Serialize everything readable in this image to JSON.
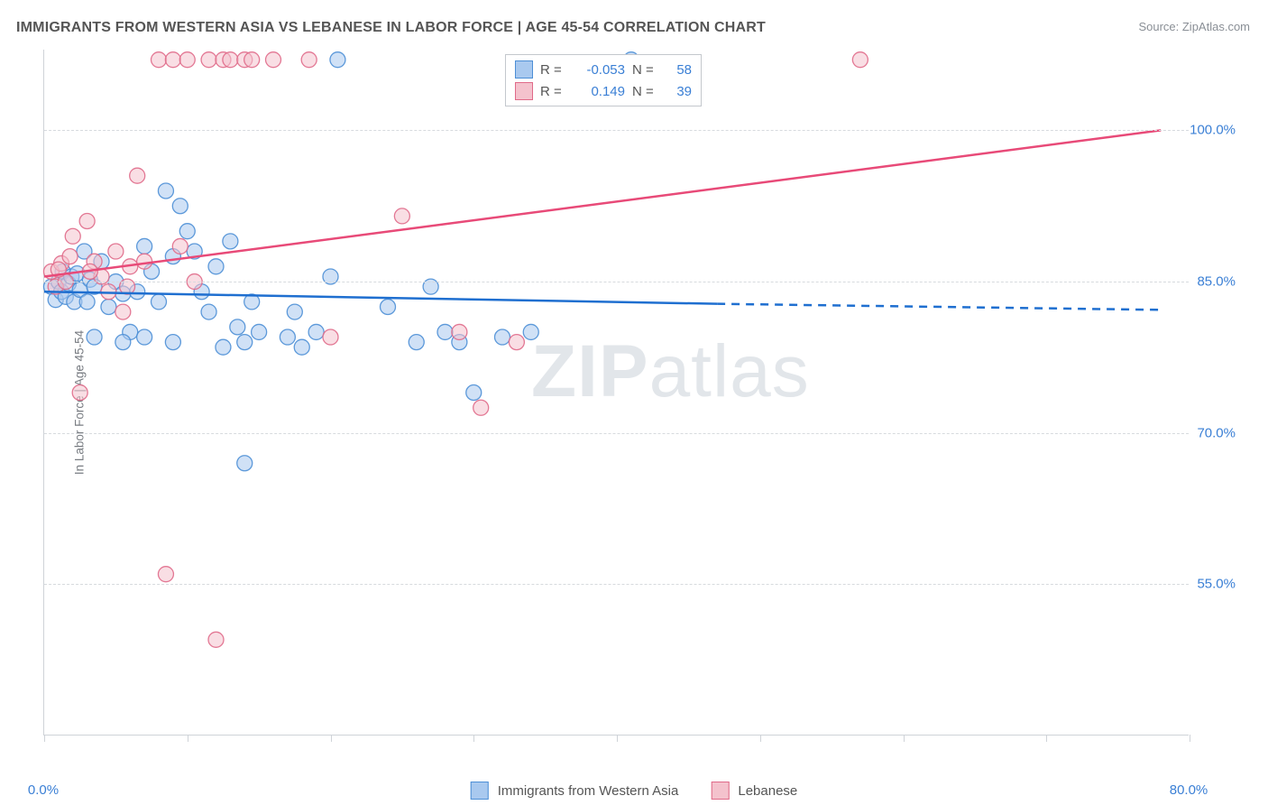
{
  "title": "IMMIGRANTS FROM WESTERN ASIA VS LEBANESE IN LABOR FORCE | AGE 45-54 CORRELATION CHART",
  "source": "Source: ZipAtlas.com",
  "watermark_a": "ZIP",
  "watermark_b": "atlas",
  "y_axis_title": "In Labor Force | Age 45-54",
  "chart": {
    "type": "scatter-with-trend",
    "background_color": "#ffffff",
    "grid_color": "#d7dade",
    "axis_color": "#cfd3d8",
    "x_domain": [
      0,
      80
    ],
    "y_domain": [
      40,
      108
    ],
    "y_ticks": [
      55.0,
      70.0,
      85.0,
      100.0
    ],
    "y_tick_labels": [
      "55.0%",
      "70.0%",
      "85.0%",
      "100.0%"
    ],
    "x_ticks": [
      0,
      10,
      20,
      30,
      40,
      50,
      60,
      70,
      80
    ],
    "x_tick_labels": [
      "0.0%",
      "",
      "",
      "",
      "",
      "",
      "",
      "",
      "80.0%"
    ],
    "marker_radius": 8.5,
    "marker_opacity": 0.55,
    "line_width": 2.5,
    "series": [
      {
        "name": "Immigrants from Western Asia",
        "fill": "#a9c9ef",
        "stroke": "#4d8fd6",
        "line_color": "#1f6fd0",
        "R": "-0.053",
        "N": "58",
        "trend": {
          "x1": 0,
          "y1": 84.0,
          "x2": 47,
          "y2": 82.8,
          "dash_x2": 78,
          "dash_y2": 82.2
        },
        "points": [
          [
            0.5,
            84.5
          ],
          [
            0.8,
            83.2
          ],
          [
            1.0,
            85.0
          ],
          [
            1.2,
            84.0
          ],
          [
            1.3,
            86.0
          ],
          [
            1.5,
            83.5
          ],
          [
            1.7,
            84.8
          ],
          [
            1.9,
            85.5
          ],
          [
            2.1,
            83.0
          ],
          [
            2.3,
            85.8
          ],
          [
            2.5,
            84.2
          ],
          [
            2.8,
            88.0
          ],
          [
            3.0,
            83.0
          ],
          [
            3.2,
            85.2
          ],
          [
            3.5,
            84.5
          ],
          [
            4.0,
            87.0
          ],
          [
            4.5,
            82.5
          ],
          [
            5.0,
            85.0
          ],
          [
            5.5,
            83.8
          ],
          [
            6.0,
            80.0
          ],
          [
            6.5,
            84.0
          ],
          [
            7.0,
            88.5
          ],
          [
            7.5,
            86.0
          ],
          [
            8.0,
            83.0
          ],
          [
            8.5,
            94.0
          ],
          [
            9.0,
            87.5
          ],
          [
            9.5,
            92.5
          ],
          [
            10.0,
            90.0
          ],
          [
            10.5,
            88.0
          ],
          [
            11.0,
            84.0
          ],
          [
            11.5,
            82.0
          ],
          [
            12.0,
            86.5
          ],
          [
            12.5,
            78.5
          ],
          [
            13.0,
            89.0
          ],
          [
            13.5,
            80.5
          ],
          [
            14.0,
            79.0
          ],
          [
            14.5,
            83.0
          ],
          [
            15.0,
            80.0
          ],
          [
            14.0,
            67.0
          ],
          [
            17.0,
            79.5
          ],
          [
            17.5,
            82.0
          ],
          [
            18.0,
            78.5
          ],
          [
            19.0,
            80.0
          ],
          [
            20.0,
            85.5
          ],
          [
            20.5,
            107.0
          ],
          [
            24.0,
            82.5
          ],
          [
            26.0,
            79.0
          ],
          [
            27.0,
            84.5
          ],
          [
            28.0,
            80.0
          ],
          [
            29.0,
            79.0
          ],
          [
            30.0,
            74.0
          ],
          [
            32.0,
            79.5
          ],
          [
            34.0,
            80.0
          ],
          [
            41.0,
            107.0
          ],
          [
            3.5,
            79.5
          ],
          [
            5.5,
            79.0
          ],
          [
            7.0,
            79.5
          ],
          [
            9.0,
            79.0
          ]
        ]
      },
      {
        "name": "Lebanese",
        "fill": "#f4c2cd",
        "stroke": "#e06a89",
        "line_color": "#e84a78",
        "R": "0.149",
        "N": "39",
        "trend": {
          "x1": 0,
          "y1": 85.5,
          "x2": 78,
          "y2": 100.0
        },
        "points": [
          [
            0.5,
            86.0
          ],
          [
            0.8,
            84.5
          ],
          [
            1.2,
            86.8
          ],
          [
            1.5,
            85.0
          ],
          [
            2.0,
            89.5
          ],
          [
            2.5,
            74.0
          ],
          [
            3.0,
            91.0
          ],
          [
            3.5,
            87.0
          ],
          [
            4.0,
            85.5
          ],
          [
            4.5,
            84.0
          ],
          [
            5.0,
            88.0
          ],
          [
            5.8,
            84.5
          ],
          [
            5.5,
            82.0
          ],
          [
            6.5,
            95.5
          ],
          [
            7.0,
            87.0
          ],
          [
            8.0,
            107.0
          ],
          [
            8.5,
            56.0
          ],
          [
            9.0,
            107.0
          ],
          [
            9.5,
            88.5
          ],
          [
            10.0,
            107.0
          ],
          [
            10.5,
            85.0
          ],
          [
            11.5,
            107.0
          ],
          [
            12.0,
            49.5
          ],
          [
            12.5,
            107.0
          ],
          [
            13.0,
            107.0
          ],
          [
            14.0,
            107.0
          ],
          [
            14.5,
            107.0
          ],
          [
            16.0,
            107.0
          ],
          [
            18.5,
            107.0
          ],
          [
            20.0,
            79.5
          ],
          [
            25.0,
            91.5
          ],
          [
            29.0,
            80.0
          ],
          [
            30.5,
            72.5
          ],
          [
            33.0,
            79.0
          ],
          [
            57.0,
            107.0
          ],
          [
            1.0,
            86.2
          ],
          [
            1.8,
            87.5
          ],
          [
            3.2,
            86.0
          ],
          [
            6.0,
            86.5
          ]
        ]
      }
    ],
    "legend_top": {
      "R_label": "R =",
      "N_label": "N ="
    },
    "legend_bottom_labels": [
      "Immigrants from Western Asia",
      "Lebanese"
    ]
  }
}
